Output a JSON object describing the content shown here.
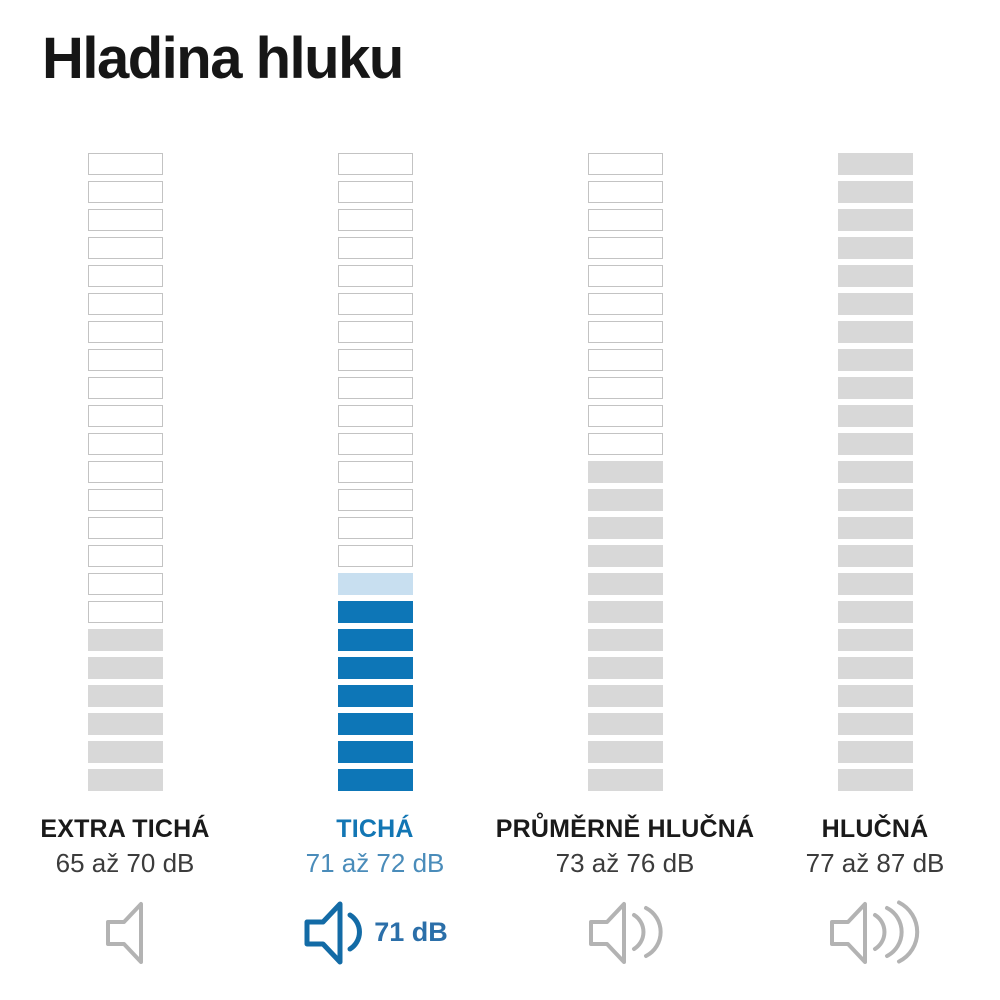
{
  "title": "Hladina hluku",
  "colors": {
    "background": "#ffffff",
    "title_text": "#161616",
    "segment_outline_border": "#c3c3c3",
    "segment_gray": "#d8d8d8",
    "segment_blue": "#0d76b7",
    "segment_light_blue": "#c8dff0",
    "category_text": "#1a1a1a",
    "range_text": "#3c3c3c",
    "accent_category_text": "#1276b4",
    "accent_range_text": "#4a8cba",
    "icon_gray": "#b3b3b3",
    "icon_blue": "#136ba6",
    "badge_text": "#2b6fa9"
  },
  "columns": [
    {
      "key": "extra-ticha",
      "label": "EXTRA TICHÁ",
      "range": "65 až 70 dB",
      "accent": false,
      "top_outline": 17,
      "light": 0,
      "filled": 6,
      "fill": "gray",
      "waves": 0,
      "badge": null
    },
    {
      "key": "ticha",
      "label": "TICHÁ",
      "range": "71 až 72 dB",
      "accent": true,
      "top_outline": 15,
      "light": 1,
      "filled": 7,
      "fill": "blue",
      "waves": 1,
      "badge": "71 dB"
    },
    {
      "key": "prumerne-hlucna",
      "label": "PRŮMĚRNĚ HLUČNÁ",
      "range": "73 až 76 dB",
      "accent": false,
      "top_outline": 11,
      "light": 0,
      "filled": 12,
      "fill": "gray",
      "waves": 2,
      "badge": null
    },
    {
      "key": "hlucna",
      "label": "HLUČNÁ",
      "range": "77 až 87 dB",
      "accent": false,
      "top_outline": 0,
      "light": 0,
      "filled": 23,
      "fill": "gray",
      "waves": 3,
      "badge": null
    }
  ],
  "chart_data": {
    "type": "bar",
    "title": "Hladina hluku",
    "categories": [
      "EXTRA TICHÁ",
      "TICHÁ",
      "PRŮMĚRNĚ HLUČNÁ",
      "HLUČNÁ"
    ],
    "range_labels": [
      "65 až 70 dB",
      "71 až 72 dB",
      "73 až 76 dB",
      "77 až 87 dB"
    ],
    "ranges_db": [
      [
        65,
        70
      ],
      [
        71,
        72
      ],
      [
        73,
        76
      ],
      [
        77,
        87
      ]
    ],
    "scale_db_min": 65,
    "scale_db_max": 87,
    "segments_per_column": 23,
    "filled_segments_from_bottom": [
      6,
      8,
      12,
      23
    ],
    "highlighted_category": "TICHÁ",
    "highlighted_value_db": 71,
    "sound_wave_counts": [
      0,
      1,
      2,
      3
    ],
    "legend_position": "none",
    "orientation": "vertical-segmented",
    "grid": false
  }
}
